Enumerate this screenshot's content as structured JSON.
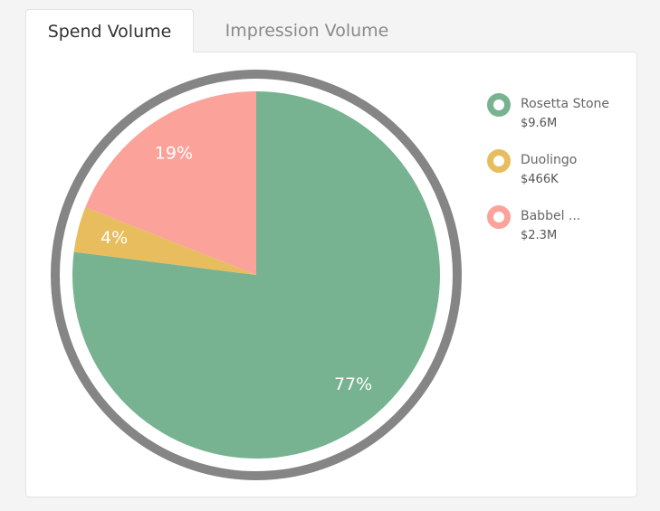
{
  "tabs": {
    "spend_label": "Spend Volume",
    "impression_label": "Impression Volume"
  },
  "colors": {
    "ring": "#858585",
    "slice_label": "#ffffff"
  },
  "legend": {
    "items": [
      {
        "name": "Rosetta Stone",
        "value": "$9.6M",
        "color": "#78b391"
      },
      {
        "name": "Duolingo",
        "value": "$466K",
        "color": "#e8bd5e"
      },
      {
        "name": "Babbel ...",
        "value": "$2.3M",
        "color": "#fba39a"
      }
    ]
  },
  "chart_data": {
    "type": "pie",
    "title": "",
    "slices": [
      {
        "label": "Rosetta Stone",
        "value": 77,
        "display": "77%",
        "color": "#78b391"
      },
      {
        "label": "Duolingo",
        "value": 4,
        "display": "4%",
        "color": "#e8bd5e"
      },
      {
        "label": "Babbel ...",
        "value": 19,
        "display": "19%",
        "color": "#fba39a"
      }
    ],
    "start": "top",
    "direction": "clockwise"
  }
}
